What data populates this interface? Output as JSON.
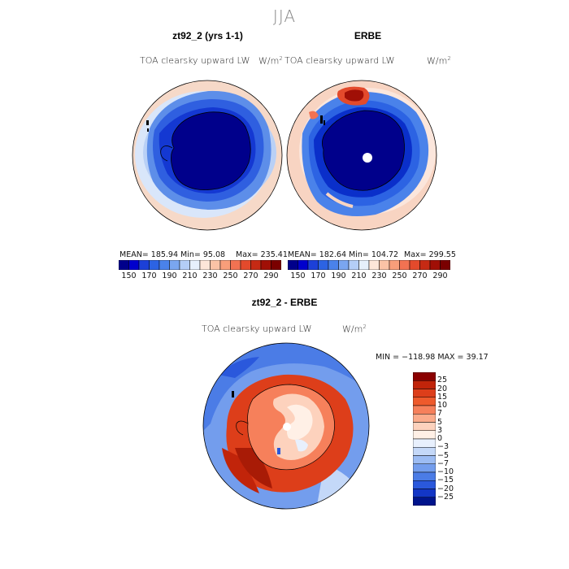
{
  "figure": {
    "season": "JJA"
  },
  "panels": {
    "model": {
      "title": "zt92_2 (yrs 1-1)",
      "variable": "TOA clearsky upward LW",
      "units_base": "W/m",
      "units_exp": "2",
      "mean_text": "MEAN= 185.94",
      "min_text": "Min=  95.08",
      "max_text": "Max= 235.41"
    },
    "obs": {
      "title": "ERBE",
      "variable": "TOA clearsky upward LW",
      "units_base": "W/m",
      "units_exp": "2",
      "mean_text": "MEAN= 182.64",
      "min_text": "Min= 104.72",
      "max_text": "Max= 299.55"
    },
    "diff": {
      "title": "zt92_2 - ERBE",
      "variable": "TOA clearsky upward LW",
      "units_base": "W/m",
      "units_exp": "2",
      "minmax_text": "MIN = −118.98 MAX =  39.17"
    }
  },
  "colorbars": {
    "top": {
      "colors": [
        "#00008b",
        "#0000cd",
        "#1c40d8",
        "#2c63e3",
        "#4a82ea",
        "#7aa6f0",
        "#b4cef7",
        "#e6f0fc",
        "#fde6d9",
        "#fbc3a6",
        "#f89e7a",
        "#f27252",
        "#e34a2c",
        "#c62a14",
        "#a00f06",
        "#7a0000"
      ],
      "tick_labels": [
        "150",
        "170",
        "190",
        "210",
        "230",
        "250",
        "270",
        "290"
      ]
    },
    "diff": {
      "colors": [
        "#8b0000",
        "#c1240a",
        "#dd3e1a",
        "#ee5a2c",
        "#f6805b",
        "#fbab8b",
        "#fdd2bd",
        "#fff0e6",
        "#e8f0fd",
        "#c4d8f8",
        "#9cbcf3",
        "#739ded",
        "#4b7ce6",
        "#2a58dc",
        "#1336c6",
        "#00148c"
      ],
      "tick_labels": [
        "25",
        "20",
        "15",
        "10",
        "7",
        "5",
        "3",
        "0",
        "−3",
        "−5",
        "−7",
        "−10",
        "−15",
        "−20",
        "−25"
      ]
    }
  }
}
